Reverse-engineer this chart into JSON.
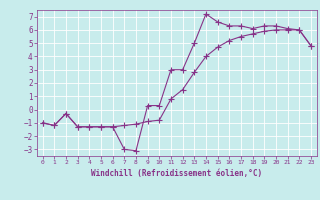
{
  "xlabel": "Windchill (Refroidissement éolien,°C)",
  "ylabel": "",
  "background_color": "#c8ecec",
  "line_color": "#883388",
  "grid_color": "#aadddd",
  "xlim": [
    -0.5,
    23.5
  ],
  "ylim": [
    -3.5,
    7.5
  ],
  "xticks": [
    0,
    1,
    2,
    3,
    4,
    5,
    6,
    7,
    8,
    9,
    10,
    11,
    12,
    13,
    14,
    15,
    16,
    17,
    18,
    19,
    20,
    21,
    22,
    23
  ],
  "yticks": [
    -3,
    -2,
    -1,
    0,
    1,
    2,
    3,
    4,
    5,
    6,
    7
  ],
  "line1_x": [
    0,
    1,
    2,
    3,
    4,
    5,
    6,
    7,
    8,
    9,
    10,
    11,
    12,
    13,
    14,
    15,
    16,
    17,
    18,
    19,
    20,
    21,
    22,
    23
  ],
  "line1_y": [
    -1.0,
    -1.2,
    -0.3,
    -1.3,
    -1.3,
    -1.3,
    -1.3,
    -3.0,
    -3.1,
    0.3,
    0.3,
    3.0,
    3.0,
    5.0,
    7.2,
    6.6,
    6.3,
    6.3,
    6.1,
    6.3,
    6.3,
    6.1,
    6.0,
    4.8
  ],
  "line2_x": [
    0,
    1,
    2,
    3,
    4,
    5,
    6,
    7,
    8,
    9,
    10,
    11,
    12,
    13,
    14,
    15,
    16,
    17,
    18,
    19,
    20,
    21,
    22,
    23
  ],
  "line2_y": [
    -1.0,
    -1.2,
    -0.3,
    -1.3,
    -1.3,
    -1.3,
    -1.3,
    -1.2,
    -1.1,
    -0.9,
    -0.8,
    0.8,
    1.5,
    2.8,
    4.0,
    4.7,
    5.2,
    5.5,
    5.7,
    5.9,
    6.0,
    6.0,
    6.0,
    4.8
  ]
}
